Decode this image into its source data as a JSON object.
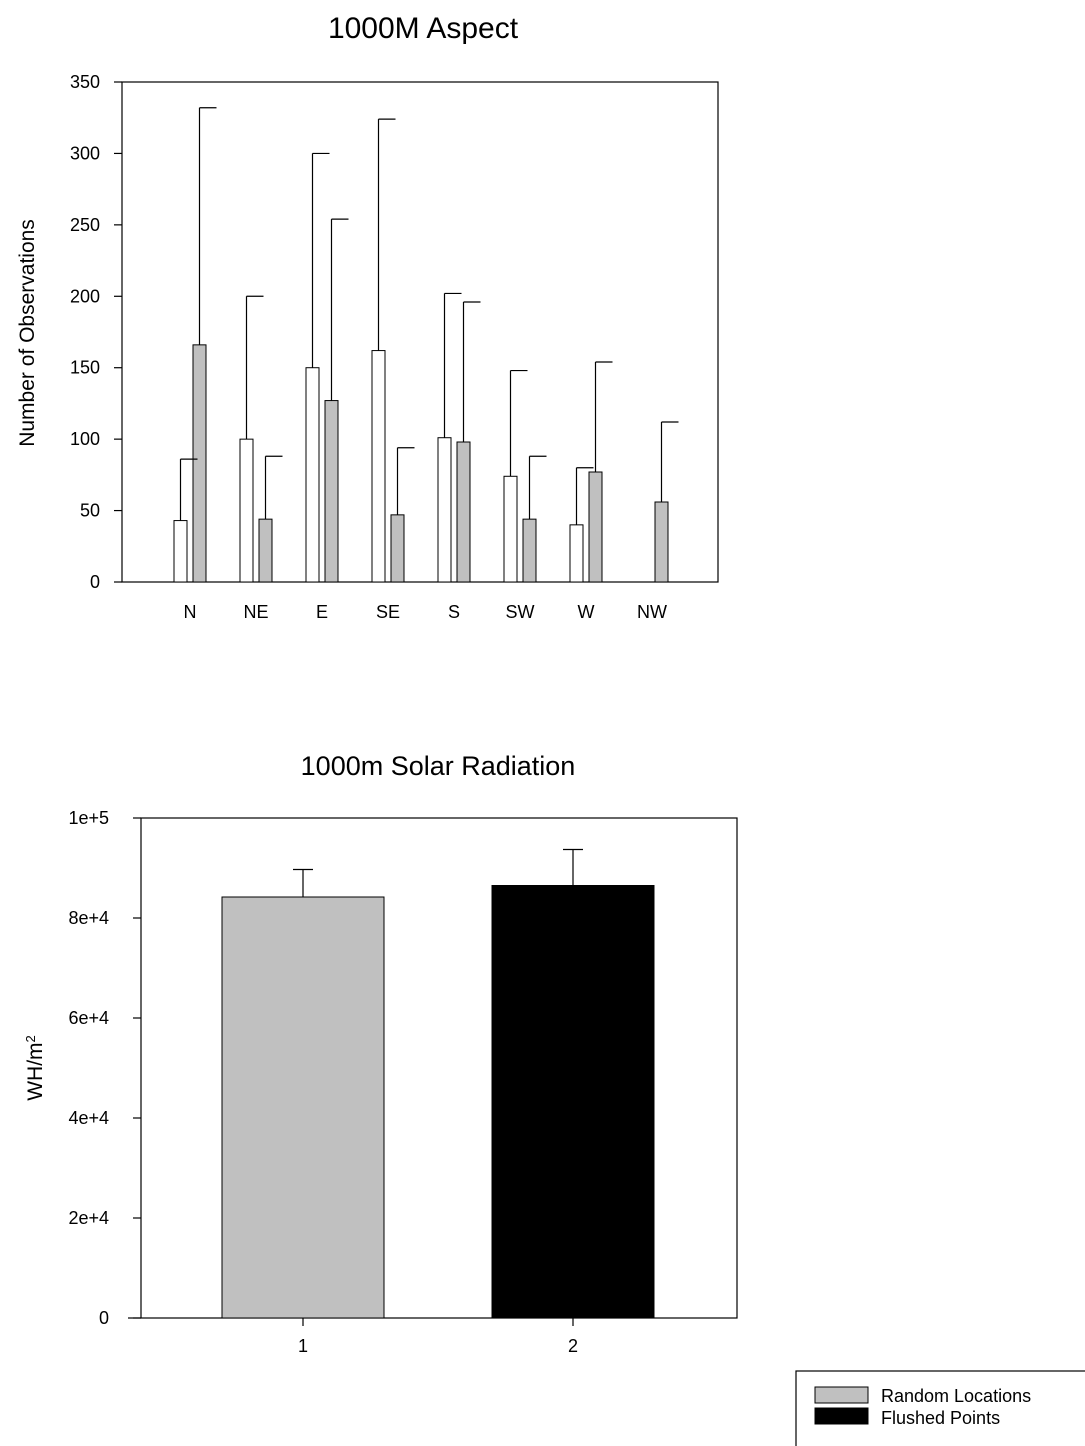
{
  "chart_data": [
    {
      "type": "bar",
      "title": "1000M Aspect",
      "xlabel": "",
      "ylabel": "Number of Observations",
      "ylim": [
        0,
        350
      ],
      "yticks": [
        0,
        50,
        100,
        150,
        200,
        250,
        300,
        350
      ],
      "categories": [
        "N",
        "NE",
        "E",
        "SE",
        "S",
        "SW",
        "W",
        "NW"
      ],
      "series": [
        {
          "fill": "#ffffff",
          "values": [
            43,
            100,
            150,
            162,
            101,
            74,
            40,
            0
          ],
          "error_upper": [
            86,
            200,
            300,
            324,
            202,
            148,
            80,
            null
          ]
        },
        {
          "fill": "#c0c0c0",
          "values": [
            166,
            44,
            127,
            47,
            98,
            44,
            77,
            56
          ],
          "error_upper": [
            332,
            88,
            254,
            94,
            196,
            88,
            154,
            112
          ]
        }
      ],
      "grid": false,
      "legend": "none"
    },
    {
      "type": "bar",
      "title": "1000m Solar Radiation",
      "xlabel": "",
      "ylabel": "WH/m",
      "ylabel_superscript": "2",
      "ylim": [
        0,
        100000
      ],
      "yticks": [
        0,
        20000,
        40000,
        60000,
        80000,
        100000
      ],
      "ytick_labels": [
        "0",
        "2e+4",
        "4e+4",
        "6e+4",
        "8e+4",
        "1e+5"
      ],
      "categories": [
        "1",
        "2"
      ],
      "series": [
        {
          "values": [
            84200,
            86500
          ],
          "error_upper": [
            89700,
            93700
          ],
          "fills": [
            "#c0c0c0",
            "#000000"
          ]
        }
      ],
      "grid": false,
      "legend": "bottom-right"
    }
  ],
  "legend": {
    "items": [
      {
        "label": "Random Locations",
        "color": "#c0c0c0"
      },
      {
        "label": "Flushed Points",
        "color": "#000000"
      }
    ]
  }
}
